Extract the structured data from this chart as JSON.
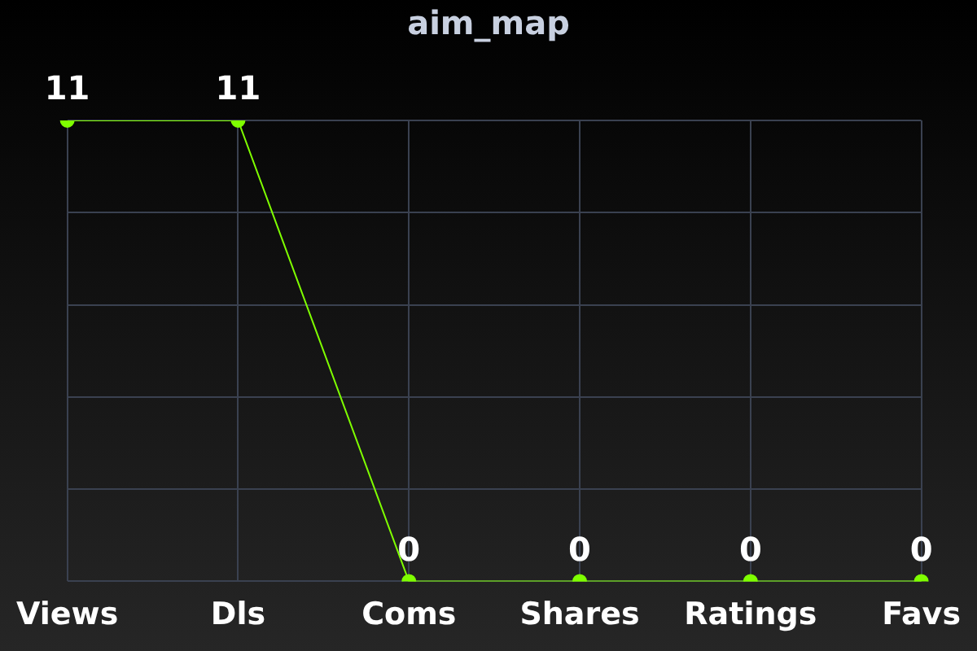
{
  "chart_data": {
    "type": "line",
    "title": "aim_map",
    "categories": [
      "Views",
      "Dls",
      "Coms",
      "Shares",
      "Ratings",
      "Favs"
    ],
    "series": [
      {
        "color": "#7fff00",
        "values": [
          11,
          11,
          0,
          0,
          0,
          0
        ]
      }
    ],
    "ylim": [
      0,
      11
    ],
    "yticks": [
      {
        "value": 0,
        "label": null
      },
      {
        "value": 2.2,
        "label": null
      },
      {
        "value": 4.4,
        "label": null
      },
      {
        "value": 6.6,
        "label": null
      },
      {
        "value": 8.8,
        "label": null
      },
      {
        "value": 11,
        "label": null
      }
    ],
    "tick_labels": "x",
    "grid": true,
    "marker": "circle",
    "data_labels": true,
    "legend": false
  }
}
